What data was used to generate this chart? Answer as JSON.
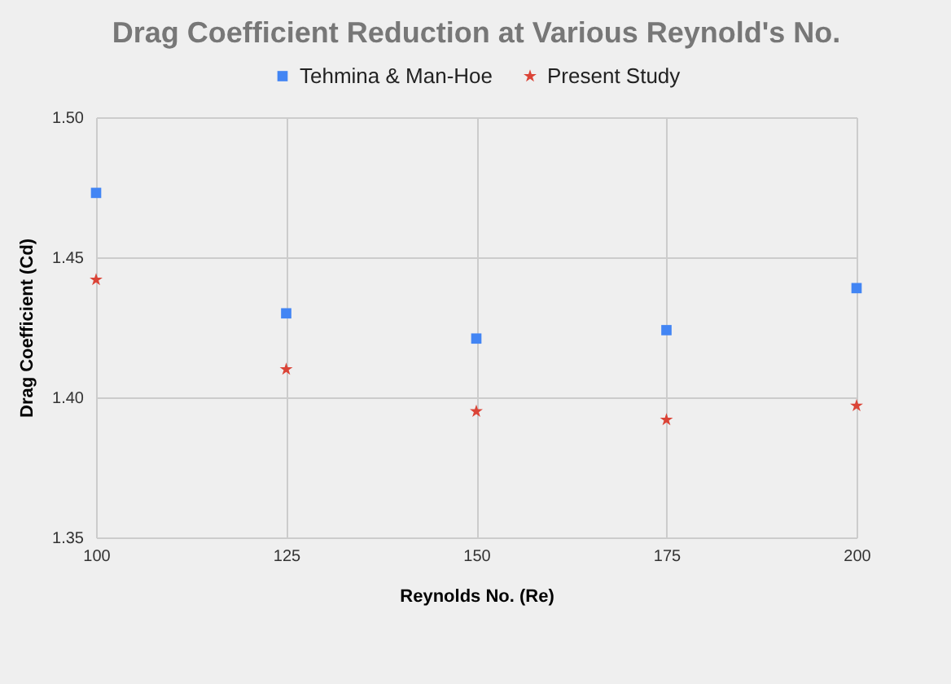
{
  "chart_data": {
    "type": "scatter",
    "title": "Drag Coefficient Reduction at Various Reynold's No.",
    "xlabel": "Reynolds No. (Re)",
    "ylabel": "Drag Coefficient (Cd)",
    "x": [
      100,
      125,
      150,
      175,
      200
    ],
    "series": [
      {
        "name": "Tehmina & Man-Hoe",
        "color": "#4285f4",
        "marker": "square",
        "values": [
          1.473,
          1.43,
          1.421,
          1.424,
          1.439
        ]
      },
      {
        "name": "Present Study",
        "color": "#db4437",
        "marker": "star",
        "values": [
          1.442,
          1.41,
          1.395,
          1.392,
          1.397
        ]
      }
    ],
    "xlim": [
      100,
      200
    ],
    "xticks": [
      100,
      125,
      150,
      175,
      200
    ],
    "ylim": [
      1.35,
      1.5
    ],
    "yticks": [
      1.35,
      {
        "value": 1.4,
        "label": "1.40"
      },
      1.45,
      {
        "value": 1.5,
        "label": "1.50"
      }
    ],
    "grid": true,
    "legend": "top"
  }
}
